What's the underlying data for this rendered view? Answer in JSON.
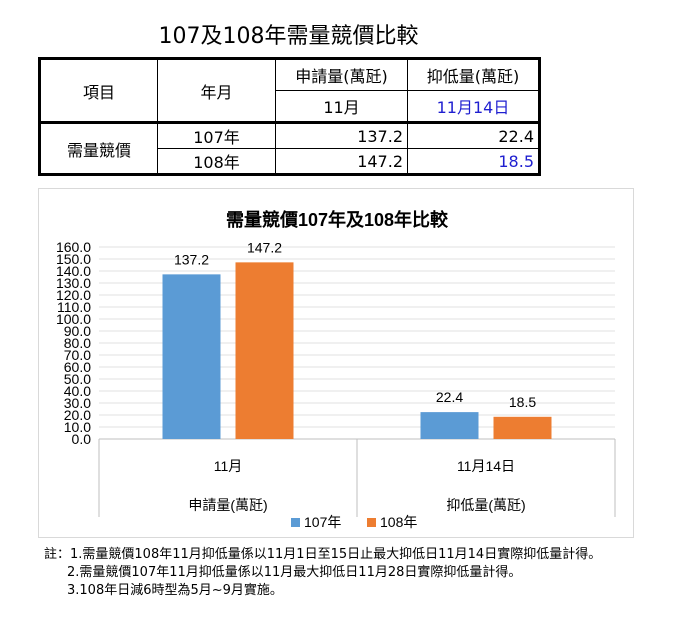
{
  "title": "107及108年需量競價比較",
  "table": {
    "header_item": "項目",
    "header_month": "年月",
    "header_request": "申請量(萬瓩)",
    "header_curtail": "抑低量(萬瓩)",
    "sub_request": "11月",
    "sub_curtail": "11月14日",
    "row_label": "需量競價",
    "rows": [
      {
        "year": "107年",
        "request": "137.2",
        "curtail": "22.4"
      },
      {
        "year": "108年",
        "request": "147.2",
        "curtail": "18.5"
      }
    ]
  },
  "chart_data": {
    "type": "bar",
    "title": "需量競價107年及108年比較",
    "categories": [
      "11月",
      "11月14日"
    ],
    "category_groups": [
      "申請量(萬瓩)",
      "抑低量(萬瓩)"
    ],
    "series": [
      {
        "name": "107年",
        "values": [
          137.2,
          22.4
        ],
        "color": "#5b9bd5"
      },
      {
        "name": "108年",
        "values": [
          147.2,
          18.5
        ],
        "color": "#ed7d31"
      }
    ],
    "data_labels": [
      [
        "137.2",
        "22.4"
      ],
      [
        "147.2",
        "18.5"
      ]
    ],
    "ylim": [
      0,
      160
    ],
    "yticks": [
      "0.0",
      "10.0",
      "20.0",
      "30.0",
      "40.0",
      "50.0",
      "60.0",
      "70.0",
      "80.0",
      "90.0",
      "100.0",
      "110.0",
      "120.0",
      "130.0",
      "140.0",
      "150.0",
      "160.0"
    ],
    "grid": true,
    "legend": "bottom"
  },
  "notes": [
    "註：1.需量競價108年11月抑低量係以11月1日至15日止最大抑低日11月14日實際抑低量計得。",
    "2.需量競價107年11月抑低量係以11月最大抑低日11月28日實際抑低量計得。",
    "3.108年日減6時型為5月~9月實施。"
  ]
}
